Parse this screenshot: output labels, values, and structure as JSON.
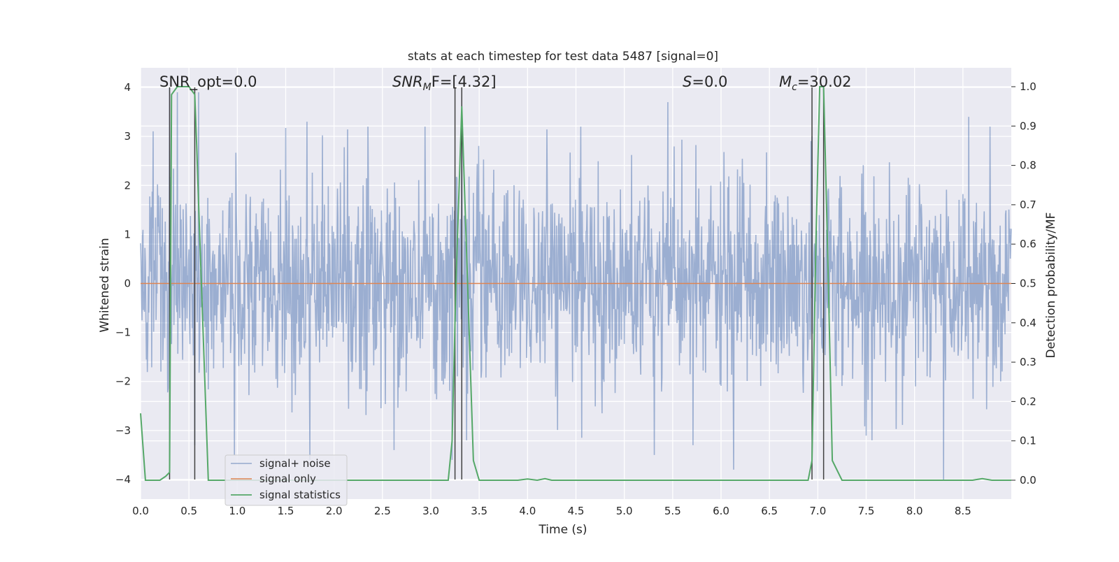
{
  "chart_data": {
    "type": "line",
    "title": "stats at each timestep for test data 5487 [signal=0]",
    "xlabel": "Time (s)",
    "ylabel": "Whitened strain",
    "y2label": "Detection probability/MF",
    "xlim": [
      0.0,
      9.0
    ],
    "ylim": [
      -4.4,
      4.4
    ],
    "y2lim": [
      -0.048,
      1.048
    ],
    "grid": true,
    "legend_position": "lower-left",
    "x_ticks": [
      "0.0",
      "0.5",
      "1.0",
      "1.5",
      "2.0",
      "2.5",
      "3.0",
      "3.5",
      "4.0",
      "4.5",
      "5.0",
      "5.5",
      "6.0",
      "6.5",
      "7.0",
      "7.5",
      "8.0",
      "8.5"
    ],
    "y_ticks": [
      "−4",
      "−3",
      "−2",
      "−1",
      "0",
      "1",
      "2",
      "3",
      "4"
    ],
    "y2_ticks": [
      "0.0",
      "0.1",
      "0.2",
      "0.3",
      "0.4",
      "0.5",
      "0.6",
      "0.7",
      "0.8",
      "0.9",
      "1.0"
    ],
    "annotations": {
      "snr_opt": "SNR_opt=0.0",
      "snr_mf_main": "SNR",
      "snr_mf_sub": "M",
      "snr_mf_rest": "F=[4.32]",
      "s_var": "S",
      "s_rest": "=0.0",
      "mc_main": "M",
      "mc_sub": "c",
      "mc_rest": "=30.02"
    },
    "series": [
      {
        "name": "signal+ noise",
        "color": "#4c72b0",
        "axis": "left",
        "style": "noise",
        "sample_rate_hz": 200,
        "peak_values": [
          {
            "x": 0.3,
            "y": 4.0
          },
          {
            "x": 0.38,
            "y": 3.9
          },
          {
            "x": 0.56,
            "y": -3.3
          },
          {
            "x": 0.6,
            "y": 3.9
          },
          {
            "x": 0.97,
            "y": -3.5
          },
          {
            "x": 1.72,
            "y": 3.3
          },
          {
            "x": 1.75,
            "y": -3.6
          },
          {
            "x": 2.62,
            "y": -3.4
          },
          {
            "x": 3.22,
            "y": -3.6
          },
          {
            "x": 3.32,
            "y": 3.6
          },
          {
            "x": 5.31,
            "y": -3.5
          },
          {
            "x": 5.45,
            "y": 3.7
          },
          {
            "x": 5.71,
            "y": -3.3
          },
          {
            "x": 6.13,
            "y": -3.8
          },
          {
            "x": 6.94,
            "y": 3.0
          },
          {
            "x": 8.3,
            "y": -4.0
          },
          {
            "x": 8.56,
            "y": 3.4
          },
          {
            "x": 8.78,
            "y": 3.2
          }
        ]
      },
      {
        "name": "signal only",
        "color": "#dd8452",
        "axis": "left",
        "x": [
          0.0,
          9.0
        ],
        "y": [
          0.0,
          0.0
        ]
      },
      {
        "name": "signal statistics",
        "color": "#55a868",
        "axis": "right",
        "x": [
          0.0,
          0.05,
          0.1,
          0.2,
          0.26,
          0.3,
          0.32,
          0.38,
          0.5,
          0.56,
          0.58,
          0.6,
          0.65,
          0.7,
          0.8,
          0.9,
          1.0,
          1.5,
          2.0,
          2.5,
          3.0,
          3.18,
          3.22,
          3.26,
          3.32,
          3.38,
          3.44,
          3.5,
          3.6,
          3.8,
          3.9,
          4.0,
          4.1,
          4.18,
          4.25,
          4.5,
          5.0,
          5.5,
          6.0,
          6.5,
          6.9,
          6.94,
          6.98,
          7.02,
          7.06,
          7.1,
          7.15,
          7.25,
          7.5,
          8.0,
          8.5,
          8.6,
          8.7,
          8.8,
          9.0
        ],
        "y": [
          0.17,
          0.0,
          0.0,
          0.0,
          0.01,
          0.02,
          0.98,
          1.0,
          1.0,
          0.98,
          0.85,
          0.7,
          0.35,
          0.0,
          0.0,
          0.0,
          0.0,
          0.0,
          0.0,
          0.0,
          0.0,
          0.0,
          0.1,
          0.5,
          0.95,
          0.5,
          0.05,
          0.0,
          0.0,
          0.0,
          0.0,
          0.003,
          0.0,
          0.004,
          0.0,
          0.0,
          0.0,
          0.0,
          0.0,
          0.0,
          0.0,
          0.05,
          0.6,
          1.0,
          1.0,
          0.6,
          0.05,
          0.0,
          0.0,
          0.0,
          0.0,
          0.0,
          0.004,
          0.0,
          0.0
        ]
      }
    ],
    "markers": {
      "color": "#404040",
      "pairs": [
        {
          "x1": 0.3,
          "x2": 0.56
        },
        {
          "x1": 3.25,
          "x2": 3.32
        },
        {
          "x1": 6.94,
          "x2": 7.06
        }
      ]
    },
    "colors": {
      "plot_background": "#eaeaf2",
      "grid": "#ffffff",
      "text": "#262626"
    }
  }
}
